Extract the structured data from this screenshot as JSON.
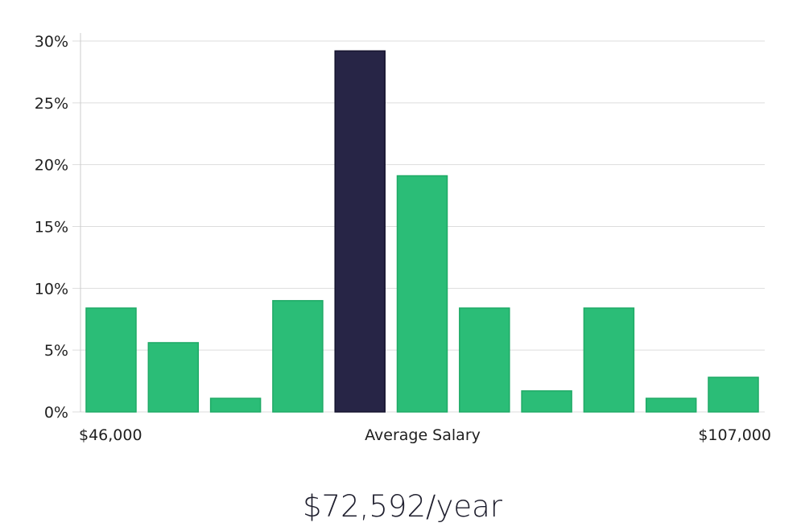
{
  "chart_data": {
    "type": "bar",
    "title": "",
    "xlabel": "Average Salary",
    "ylabel": "",
    "x_min_label": "$46,000",
    "x_max_label": "$107,000",
    "ylim": [
      0,
      30
    ],
    "yticks": [
      0,
      5,
      10,
      15,
      20,
      25,
      30
    ],
    "ytick_labels": [
      "0%",
      "5%",
      "10%",
      "15%",
      "20%",
      "25%",
      "30%"
    ],
    "values": [
      8.4,
      5.6,
      1.1,
      9.0,
      29.2,
      19.1,
      8.4,
      1.7,
      8.4,
      1.1,
      2.8
    ],
    "highlight_index": 4,
    "grid": true,
    "colors": {
      "bar": "#2bbd77",
      "bar_border": "#1faa66",
      "highlight": "#272546",
      "highlight_border": "#15132e",
      "grid": "#dddddd",
      "axis": "#cccccc"
    }
  },
  "average_salary": "$72,592/year"
}
